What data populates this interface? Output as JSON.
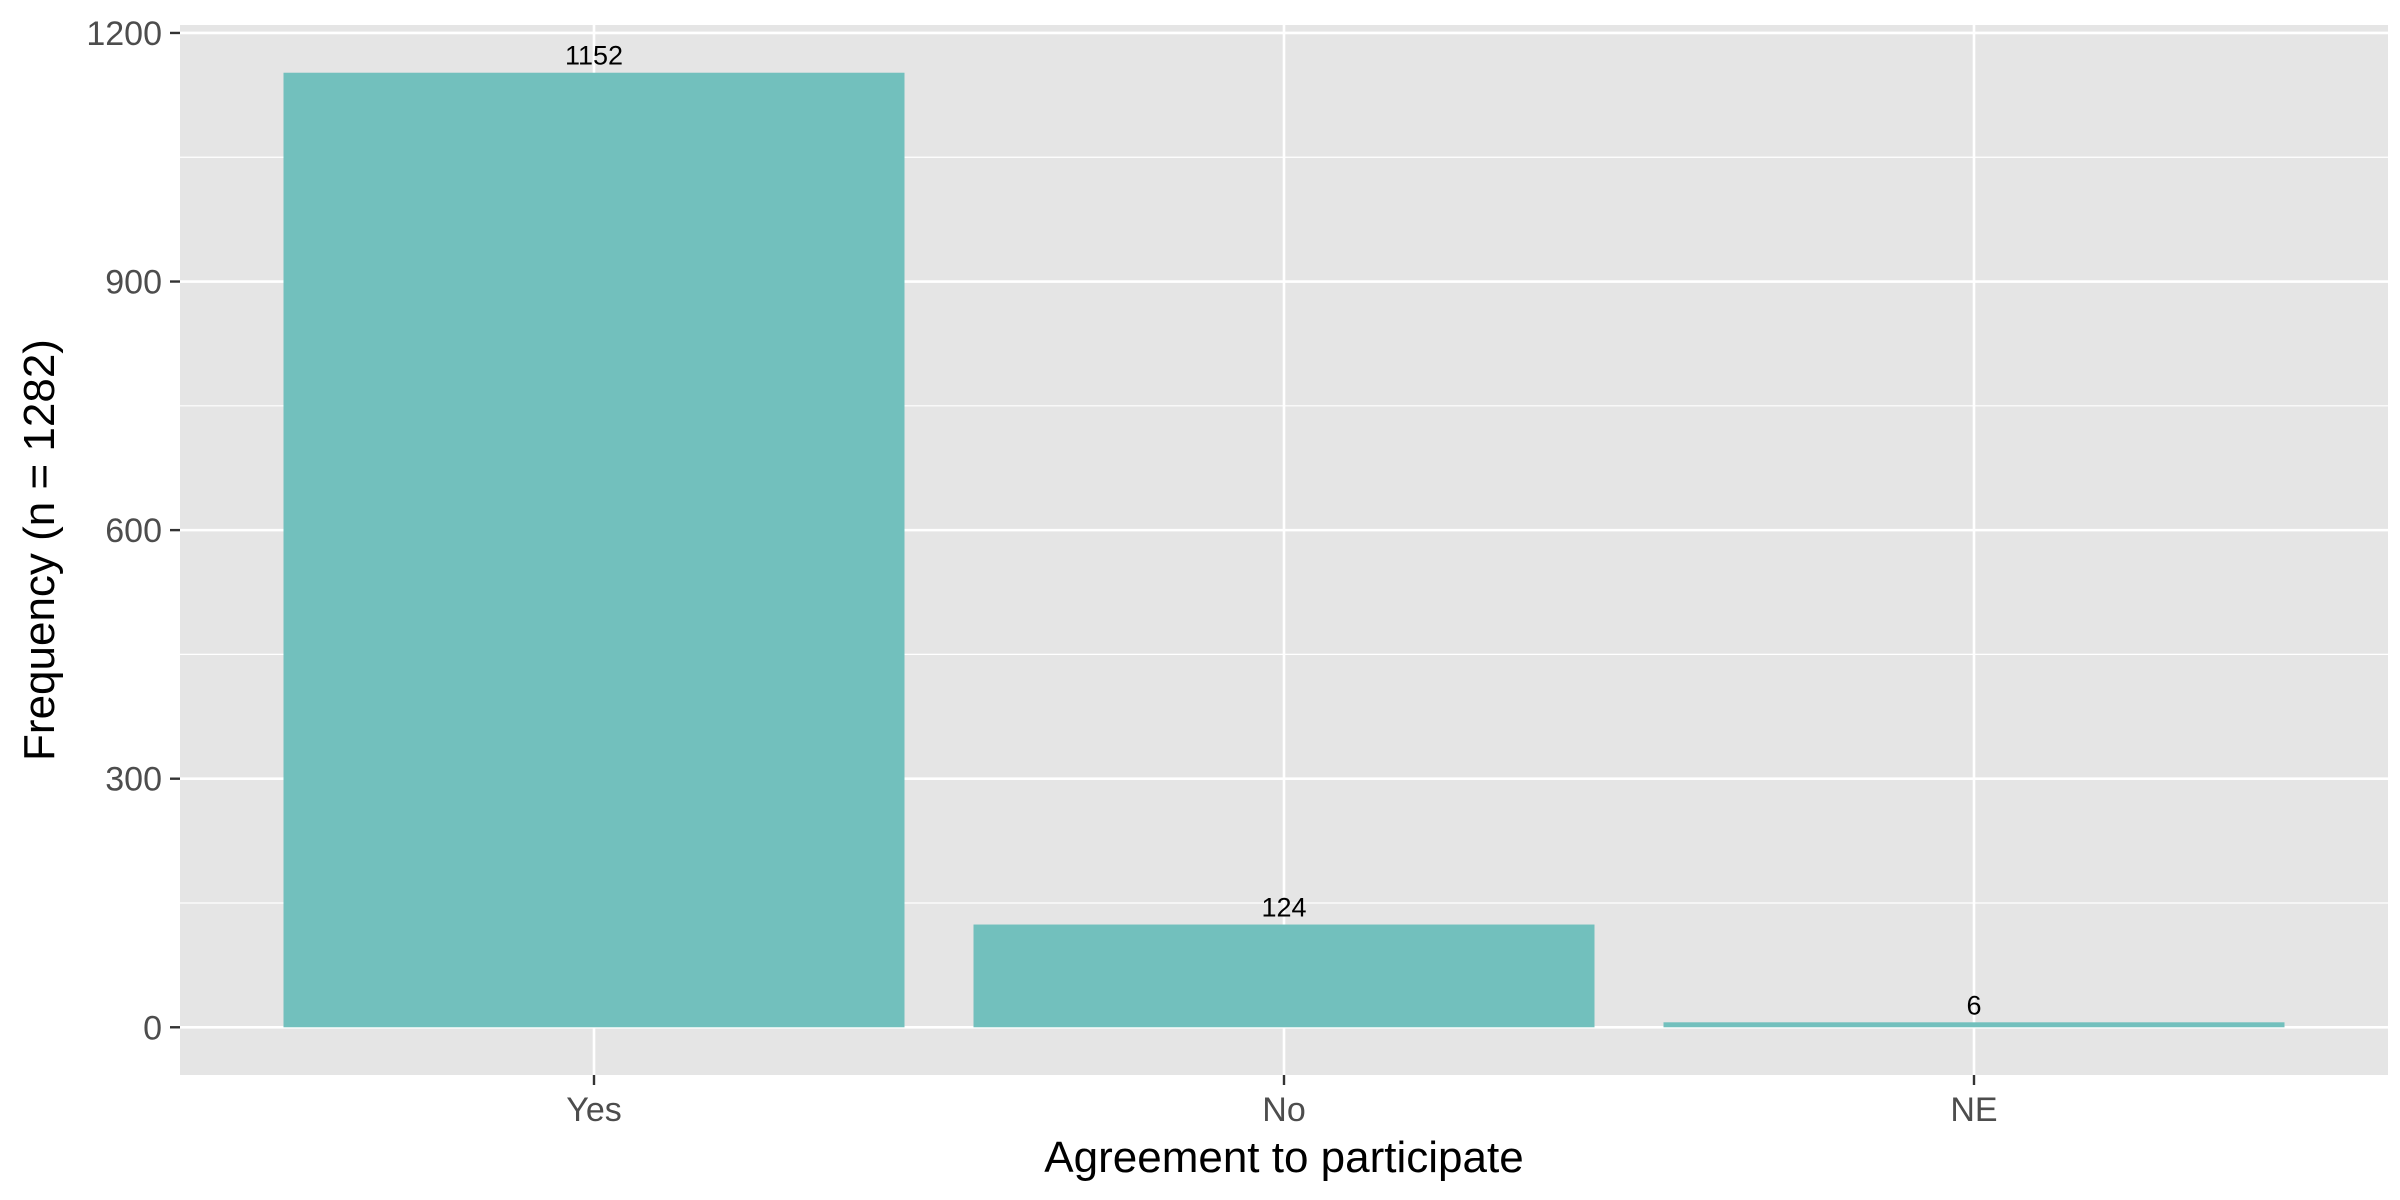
{
  "chart_data": {
    "type": "bar",
    "title": "",
    "xlabel": "Agreement to participate",
    "ylabel": "Frequency (n = 1282)",
    "categories": [
      "Yes",
      "No",
      "NE"
    ],
    "values": [
      1152,
      124,
      6
    ],
    "data_labels": [
      "1152",
      "124",
      "6"
    ],
    "ylim": [
      -57.6,
      1209.6
    ],
    "y_ticks": [
      0,
      300,
      600,
      900,
      1200
    ],
    "y_tick_labels": [
      "0",
      "300",
      "600",
      "900",
      "1200"
    ],
    "grid": true,
    "legend": "none",
    "colors": {
      "bar": "#72C0BD",
      "panel": "#E5E5E5",
      "grid": "#FFFFFF",
      "tick_text": "#4D4D4D",
      "title_text": "#000000"
    }
  }
}
